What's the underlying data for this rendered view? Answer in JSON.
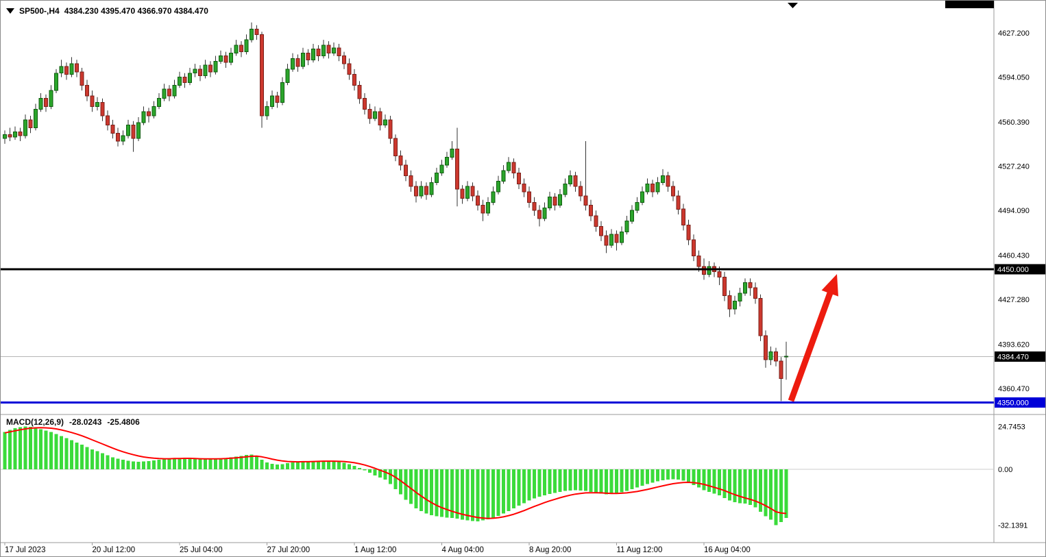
{
  "app": {
    "header": {
      "symbol_timeframe": "SP500-,H4",
      "ohlc": "4384.230 4395.470 4366.970 4384.470"
    }
  },
  "colors": {
    "bull_fill": "#2ca52c",
    "bull_border": "#0e5c0e",
    "bear_fill": "#cc382e",
    "bear_border": "#79201a",
    "wick": "#333333",
    "macd_hist": "#3bdb3b",
    "macd_signal": "#ff0000",
    "support_blue": "#0000d8",
    "tag_black": "#000000",
    "arrow_red": "#ed1c0f",
    "bid_line": "#b5b5b5",
    "axis_text": "#000000",
    "separator": "#9a9a9a"
  },
  "chart_data": {
    "type": "candlestick",
    "symbol": "SP500-",
    "timeframe": "H4",
    "current_bar": {
      "open": 4384.23,
      "high": 4395.47,
      "low": 4366.97,
      "close": 4384.47
    },
    "price_axis_ticks": [
      "4627.200",
      "4594.050",
      "4560.390",
      "4527.240",
      "4494.090",
      "4460.430",
      "4427.280",
      "4393.620",
      "4360.470"
    ],
    "price_tags": [
      {
        "label": "4450.000",
        "price": 4450.0,
        "bg": "#000000"
      },
      {
        "label": "4384.470",
        "price": 4384.47,
        "bg": "#000000"
      },
      {
        "label": "4350.000",
        "price": 4350.0,
        "bg": "#0000d8"
      }
    ],
    "horizontal_lines": [
      {
        "name": "resistance-line-4450",
        "price": 4450.0,
        "color": "#000000",
        "width": 3
      },
      {
        "name": "support-line-4350",
        "price": 4350.0,
        "color": "#0000d8",
        "width": 3
      }
    ],
    "bid_line_price": 4384.47,
    "time_axis": [
      {
        "label": "17 Jul 2023",
        "index": 0
      },
      {
        "label": "20 Jul 12:00",
        "index": 17
      },
      {
        "label": "25 Jul 04:00",
        "index": 34
      },
      {
        "label": "27 Jul 20:00",
        "index": 51
      },
      {
        "label": "1 Aug 12:00",
        "index": 68
      },
      {
        "label": "4 Aug 04:00",
        "index": 85
      },
      {
        "label": "8 Aug 20:00",
        "index": 102
      },
      {
        "label": "11 Aug 12:00",
        "index": 119
      },
      {
        "label": "16 Aug 04:00",
        "index": 136
      }
    ],
    "candles": [
      [
        4548,
        4554,
        4544,
        4551
      ],
      [
        4551,
        4556,
        4546,
        4549
      ],
      [
        4549,
        4557,
        4547,
        4553
      ],
      [
        4553,
        4556,
        4546,
        4550
      ],
      [
        4550,
        4566,
        4548,
        4562
      ],
      [
        4562,
        4565,
        4552,
        4556
      ],
      [
        4556,
        4574,
        4554,
        4570
      ],
      [
        4570,
        4582,
        4568,
        4578
      ],
      [
        4578,
        4581,
        4568,
        4572
      ],
      [
        4572,
        4588,
        4570,
        4584
      ],
      [
        4584,
        4600,
        4582,
        4597
      ],
      [
        4597,
        4607,
        4594,
        4602
      ],
      [
        4602,
        4605,
        4592,
        4596
      ],
      [
        4596,
        4609,
        4594,
        4604
      ],
      [
        4604,
        4607,
        4594,
        4598
      ],
      [
        4598,
        4601,
        4584,
        4588
      ],
      [
        4588,
        4592,
        4576,
        4580
      ],
      [
        4580,
        4584,
        4568,
        4572
      ],
      [
        4572,
        4579,
        4569,
        4575
      ],
      [
        4575,
        4578,
        4561,
        4565
      ],
      [
        4565,
        4569,
        4554,
        4558
      ],
      [
        4558,
        4562,
        4548,
        4552
      ],
      [
        4552,
        4556,
        4542,
        4546
      ],
      [
        4546,
        4554,
        4543,
        4550
      ],
      [
        4550,
        4562,
        4548,
        4558
      ],
      [
        4558,
        4561,
        4538,
        4548
      ],
      [
        4548,
        4564,
        4546,
        4560
      ],
      [
        4560,
        4572,
        4558,
        4568
      ],
      [
        4568,
        4571,
        4560,
        4565
      ],
      [
        4565,
        4576,
        4563,
        4572
      ],
      [
        4572,
        4582,
        4570,
        4578
      ],
      [
        4578,
        4589,
        4576,
        4585
      ],
      [
        4585,
        4588,
        4576,
        4580
      ],
      [
        4580,
        4592,
        4578,
        4588
      ],
      [
        4588,
        4598,
        4586,
        4594
      ],
      [
        4594,
        4597,
        4586,
        4590
      ],
      [
        4590,
        4601,
        4588,
        4597
      ],
      [
        4597,
        4604,
        4594,
        4600
      ],
      [
        4600,
        4603,
        4591,
        4595
      ],
      [
        4595,
        4607,
        4593,
        4603
      ],
      [
        4603,
        4606,
        4594,
        4598
      ],
      [
        4598,
        4610,
        4596,
        4606
      ],
      [
        4606,
        4614,
        4604,
        4610
      ],
      [
        4610,
        4613,
        4601,
        4605
      ],
      [
        4605,
        4616,
        4603,
        4612
      ],
      [
        4612,
        4622,
        4610,
        4618
      ],
      [
        4618,
        4621,
        4609,
        4613
      ],
      [
        4613,
        4626,
        4611,
        4622
      ],
      [
        4622,
        4635,
        4620,
        4630
      ],
      [
        4630,
        4633,
        4622,
        4626
      ],
      [
        4626,
        4628,
        4556,
        4565
      ],
      [
        4565,
        4576,
        4562,
        4572
      ],
      [
        4572,
        4584,
        4570,
        4580
      ],
      [
        4580,
        4583,
        4571,
        4575
      ],
      [
        4575,
        4594,
        4573,
        4590
      ],
      [
        4590,
        4604,
        4588,
        4600
      ],
      [
        4600,
        4612,
        4598,
        4608
      ],
      [
        4608,
        4611,
        4598,
        4602
      ],
      [
        4602,
        4616,
        4600,
        4612
      ],
      [
        4612,
        4615,
        4603,
        4607
      ],
      [
        4607,
        4619,
        4605,
        4615
      ],
      [
        4615,
        4618,
        4606,
        4610
      ],
      [
        4610,
        4622,
        4608,
        4618
      ],
      [
        4618,
        4621,
        4608,
        4612
      ],
      [
        4612,
        4620,
        4610,
        4616
      ],
      [
        4616,
        4619,
        4606,
        4610
      ],
      [
        4610,
        4613,
        4600,
        4604
      ],
      [
        4604,
        4608,
        4592,
        4596
      ],
      [
        4596,
        4600,
        4584,
        4588
      ],
      [
        4588,
        4591,
        4574,
        4578
      ],
      [
        4578,
        4582,
        4566,
        4570
      ],
      [
        4570,
        4574,
        4559,
        4563
      ],
      [
        4563,
        4572,
        4561,
        4568
      ],
      [
        4568,
        4571,
        4554,
        4558
      ],
      [
        4558,
        4566,
        4556,
        4562
      ],
      [
        4562,
        4565,
        4544,
        4548
      ],
      [
        4548,
        4551,
        4531,
        4535
      ],
      [
        4535,
        4539,
        4524,
        4528
      ],
      [
        4528,
        4532,
        4516,
        4520
      ],
      [
        4520,
        4524,
        4508,
        4512
      ],
      [
        4512,
        4516,
        4500,
        4505
      ],
      [
        4505,
        4516,
        4503,
        4512
      ],
      [
        4512,
        4515,
        4502,
        4506
      ],
      [
        4506,
        4519,
        4504,
        4515
      ],
      [
        4515,
        4526,
        4513,
        4522
      ],
      [
        4522,
        4532,
        4520,
        4528
      ],
      [
        4528,
        4538,
        4526,
        4534
      ],
      [
        4534,
        4546,
        4532,
        4540
      ],
      [
        4540,
        4556,
        4497,
        4510
      ],
      [
        4510,
        4513,
        4499,
        4503
      ],
      [
        4503,
        4516,
        4501,
        4512
      ],
      [
        4512,
        4515,
        4501,
        4505
      ],
      [
        4505,
        4509,
        4494,
        4498
      ],
      [
        4498,
        4502,
        4486,
        4492
      ],
      [
        4492,
        4504,
        4490,
        4500
      ],
      [
        4500,
        4512,
        4498,
        4508
      ],
      [
        4508,
        4520,
        4506,
        4516
      ],
      [
        4516,
        4528,
        4514,
        4524
      ],
      [
        4524,
        4534,
        4522,
        4530
      ],
      [
        4530,
        4533,
        4518,
        4522
      ],
      [
        4522,
        4526,
        4510,
        4514
      ],
      [
        4514,
        4518,
        4504,
        4508
      ],
      [
        4508,
        4512,
        4496,
        4500
      ],
      [
        4500,
        4504,
        4490,
        4494
      ],
      [
        4494,
        4498,
        4482,
        4488
      ],
      [
        4488,
        4500,
        4486,
        4496
      ],
      [
        4496,
        4508,
        4494,
        4504
      ],
      [
        4504,
        4507,
        4494,
        4498
      ],
      [
        4498,
        4510,
        4496,
        4506
      ],
      [
        4506,
        4518,
        4504,
        4514
      ],
      [
        4514,
        4524,
        4512,
        4520
      ],
      [
        4520,
        4523,
        4508,
        4512
      ],
      [
        4512,
        4516,
        4501,
        4505
      ],
      [
        4505,
        4546,
        4494,
        4498
      ],
      [
        4498,
        4502,
        4486,
        4490
      ],
      [
        4490,
        4494,
        4478,
        4482
      ],
      [
        4482,
        4486,
        4471,
        4475
      ],
      [
        4475,
        4479,
        4462,
        4468
      ],
      [
        4468,
        4480,
        4466,
        4476
      ],
      [
        4476,
        4479,
        4464,
        4470
      ],
      [
        4470,
        4482,
        4468,
        4478
      ],
      [
        4478,
        4490,
        4476,
        4486
      ],
      [
        4486,
        4498,
        4484,
        4494
      ],
      [
        4494,
        4504,
        4492,
        4500
      ],
      [
        4500,
        4512,
        4498,
        4508
      ],
      [
        4508,
        4518,
        4506,
        4514
      ],
      [
        4514,
        4517,
        4504,
        4508
      ],
      [
        4508,
        4519,
        4506,
        4515
      ],
      [
        4515,
        4525,
        4513,
        4520
      ],
      [
        4520,
        4523,
        4508,
        4512
      ],
      [
        4512,
        4516,
        4501,
        4505
      ],
      [
        4505,
        4509,
        4491,
        4495
      ],
      [
        4495,
        4499,
        4479,
        4483
      ],
      [
        4483,
        4487,
        4468,
        4472
      ],
      [
        4472,
        4476,
        4456,
        4460
      ],
      [
        4460,
        4464,
        4448,
        4452
      ],
      [
        4452,
        4458,
        4442,
        4446
      ],
      [
        4446,
        4456,
        4444,
        4452
      ],
      [
        4452,
        4455,
        4444,
        4448
      ],
      [
        4448,
        4452,
        4438,
        4444
      ],
      [
        4444,
        4448,
        4426,
        4430
      ],
      [
        4430,
        4434,
        4414,
        4420
      ],
      [
        4420,
        4430,
        4416,
        4426
      ],
      [
        4426,
        4436,
        4422,
        4432
      ],
      [
        4432,
        4443,
        4430,
        4440
      ],
      [
        4440,
        4443,
        4430,
        4436
      ],
      [
        4436,
        4440,
        4424,
        4428
      ],
      [
        4428,
        4431,
        4396,
        4400
      ],
      [
        4400,
        4404,
        4376,
        4382
      ],
      [
        4382,
        4392,
        4378,
        4388
      ],
      [
        4388,
        4391,
        4377,
        4381
      ],
      [
        4381,
        4384,
        4351,
        4368
      ],
      [
        4384.2,
        4395.5,
        4367,
        4384.5
      ]
    ],
    "macd": {
      "label": "MACD(12,26,9)",
      "value_main": "-28.0243",
      "value_signal": "-25.4806",
      "axis": [
        {
          "value": 24.7453,
          "label": "24.7453"
        },
        {
          "value": 0,
          "label": "0.00"
        },
        {
          "value": -32.1391,
          "label": "-32.1391"
        }
      ],
      "histogram": [
        21.5,
        22.8,
        23.6,
        24.2,
        24.7,
        24.5,
        24.0,
        23.2,
        22.4,
        21.5,
        20.4,
        19.2,
        18.0,
        16.8,
        15.5,
        14.2,
        12.8,
        11.5,
        10.4,
        9.2,
        8.0,
        7.0,
        6.2,
        5.5,
        5.0,
        4.6,
        4.4,
        4.5,
        4.8,
        5.2,
        5.6,
        6.0,
        6.2,
        6.4,
        6.5,
        6.4,
        6.2,
        6.0,
        5.8,
        5.7,
        5.8,
        6.0,
        6.3,
        6.6,
        7.0,
        7.4,
        7.8,
        8.2,
        8.5,
        7.8,
        5.5,
        4.0,
        3.2,
        2.8,
        3.0,
        3.5,
        4.0,
        4.2,
        4.5,
        4.6,
        4.8,
        4.9,
        5.0,
        4.9,
        4.7,
        4.3,
        3.8,
        3.0,
        2.0,
        0.8,
        -0.5,
        -2.0,
        -3.5,
        -4.8,
        -6.0,
        -8.5,
        -11.5,
        -14.5,
        -17.5,
        -20.0,
        -22.5,
        -24.0,
        -25.5,
        -26.5,
        -27.0,
        -27.5,
        -27.8,
        -28.0,
        -28.5,
        -29.0,
        -29.5,
        -29.8,
        -30.0,
        -29.5,
        -28.8,
        -28.0,
        -26.8,
        -25.5,
        -24.0,
        -22.5,
        -21.0,
        -19.5,
        -18.0,
        -16.8,
        -15.8,
        -15.0,
        -14.2,
        -13.6,
        -13.0,
        -12.5,
        -12.2,
        -12.0,
        -12.2,
        -12.5,
        -13.0,
        -13.5,
        -14.0,
        -14.5,
        -14.2,
        -13.8,
        -13.2,
        -12.5,
        -11.5,
        -10.5,
        -9.5,
        -8.5,
        -7.8,
        -7.0,
        -6.4,
        -6.0,
        -5.8,
        -6.0,
        -6.5,
        -7.5,
        -9.0,
        -10.5,
        -12.0,
        -13.0,
        -14.0,
        -15.0,
        -16.5,
        -18.0,
        -19.0,
        -19.5,
        -19.8,
        -20.5,
        -22.0,
        -24.5,
        -27.0,
        -29.0,
        -32.14,
        -30.5,
        -28.02
      ],
      "signal": [
        21.0,
        21.6,
        22.2,
        22.8,
        23.3,
        23.7,
        23.9,
        24.0,
        23.9,
        23.7,
        23.3,
        22.7,
        22.0,
        21.2,
        20.3,
        19.3,
        18.2,
        17.0,
        15.8,
        14.6,
        13.4,
        12.2,
        11.1,
        10.1,
        9.2,
        8.4,
        7.7,
        7.1,
        6.7,
        6.4,
        6.2,
        6.1,
        6.1,
        6.2,
        6.2,
        6.3,
        6.3,
        6.2,
        6.1,
        6.0,
        6.0,
        6.0,
        6.1,
        6.2,
        6.4,
        6.6,
        6.9,
        7.2,
        7.5,
        7.6,
        7.2,
        6.6,
        5.9,
        5.3,
        4.8,
        4.5,
        4.4,
        4.3,
        4.4,
        4.4,
        4.5,
        4.6,
        4.7,
        4.7,
        4.7,
        4.6,
        4.5,
        4.2,
        3.8,
        3.2,
        2.5,
        1.6,
        0.6,
        -0.5,
        -1.6,
        -2.9,
        -4.6,
        -6.6,
        -8.8,
        -11.0,
        -13.3,
        -15.4,
        -17.4,
        -19.2,
        -20.8,
        -22.1,
        -23.2,
        -24.2,
        -25.1,
        -25.9,
        -26.6,
        -27.2,
        -27.8,
        -28.1,
        -28.3,
        -28.2,
        -27.9,
        -27.4,
        -26.7,
        -25.9,
        -24.9,
        -23.8,
        -22.6,
        -21.4,
        -20.3,
        -19.2,
        -18.2,
        -17.3,
        -16.4,
        -15.6,
        -14.9,
        -14.3,
        -13.9,
        -13.6,
        -13.5,
        -13.5,
        -13.6,
        -13.8,
        -13.9,
        -13.9,
        -13.8,
        -13.6,
        -13.2,
        -12.8,
        -12.2,
        -11.6,
        -10.9,
        -10.2,
        -9.5,
        -8.9,
        -8.3,
        -7.9,
        -7.6,
        -7.5,
        -7.7,
        -8.1,
        -8.7,
        -9.5,
        -10.4,
        -11.3,
        -12.3,
        -13.5,
        -14.6,
        -15.6,
        -16.5,
        -17.3,
        -18.3,
        -19.5,
        -21.0,
        -22.6,
        -24.5,
        -25.2,
        -25.48
      ]
    },
    "arrow_annotation": {
      "color": "#ed1c0f",
      "direction": "up"
    }
  }
}
